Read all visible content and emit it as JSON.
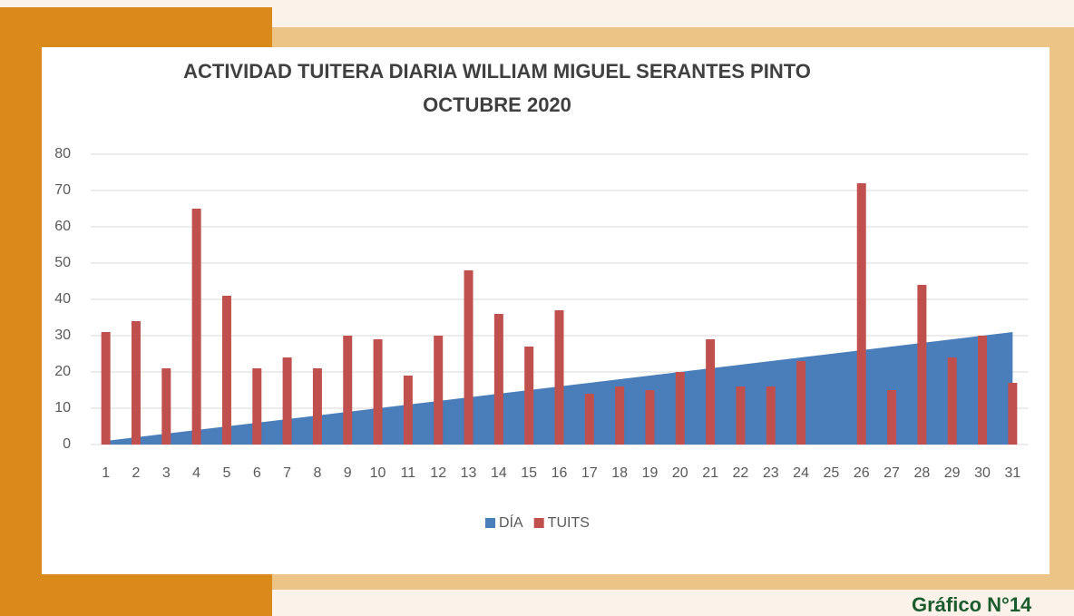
{
  "chart_data": {
    "type": "bar",
    "title": [
      "ACTIVIDAD TUITERA DIARIA WILLIAM  MIGUEL SERANTES PINTO",
      "OCTUBRE 2020"
    ],
    "categories": [
      "1",
      "2",
      "3",
      "4",
      "5",
      "6",
      "7",
      "8",
      "9",
      "10",
      "11",
      "12",
      "13",
      "14",
      "15",
      "16",
      "17",
      "18",
      "19",
      "20",
      "21",
      "22",
      "23",
      "24",
      "25",
      "26",
      "27",
      "28",
      "29",
      "30",
      "31"
    ],
    "series": [
      {
        "name": "DÍA",
        "type": "area",
        "color": "#4a7ebb",
        "values": [
          1,
          2,
          3,
          4,
          5,
          6,
          7,
          8,
          9,
          10,
          11,
          12,
          13,
          14,
          15,
          16,
          17,
          18,
          19,
          20,
          21,
          22,
          23,
          24,
          25,
          26,
          27,
          28,
          29,
          30,
          31
        ]
      },
      {
        "name": "TUITS",
        "type": "bar",
        "color": "#c0504d",
        "values": [
          31,
          34,
          21,
          65,
          41,
          21,
          24,
          21,
          30,
          29,
          19,
          30,
          48,
          36,
          27,
          37,
          14,
          16,
          15,
          20,
          29,
          16,
          16,
          23,
          0,
          72,
          15,
          44,
          24,
          30,
          17
        ]
      }
    ],
    "ylim": [
      0,
      80
    ],
    "yticks": [
      0,
      10,
      20,
      30,
      40,
      50,
      60,
      70,
      80
    ],
    "grid": true,
    "legend": "bottom",
    "caption": "Gráfico N°14"
  }
}
